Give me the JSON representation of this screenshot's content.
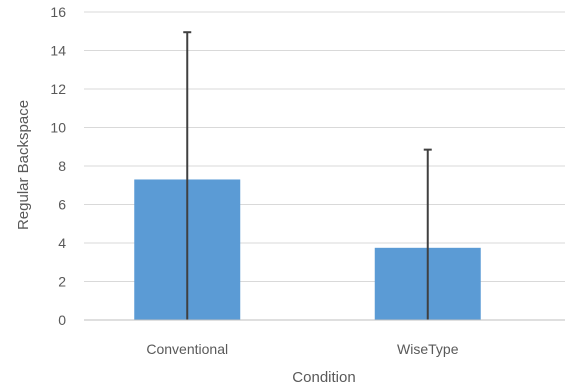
{
  "chart_data": {
    "type": "bar",
    "title": "",
    "xlabel": "Condition",
    "ylabel": "Regular Backspace",
    "categories": [
      "Conventional",
      "WiseType"
    ],
    "values": [
      7.3,
      3.75
    ],
    "error_upper": [
      14.95,
      8.85
    ],
    "ylim": [
      0,
      16
    ],
    "yticks": [
      "0",
      "2",
      "4",
      "6",
      "8",
      "10",
      "12",
      "14",
      "16"
    ],
    "grid": true,
    "bar_color": "#5b9bd5",
    "error_bar_color": "#404040"
  }
}
